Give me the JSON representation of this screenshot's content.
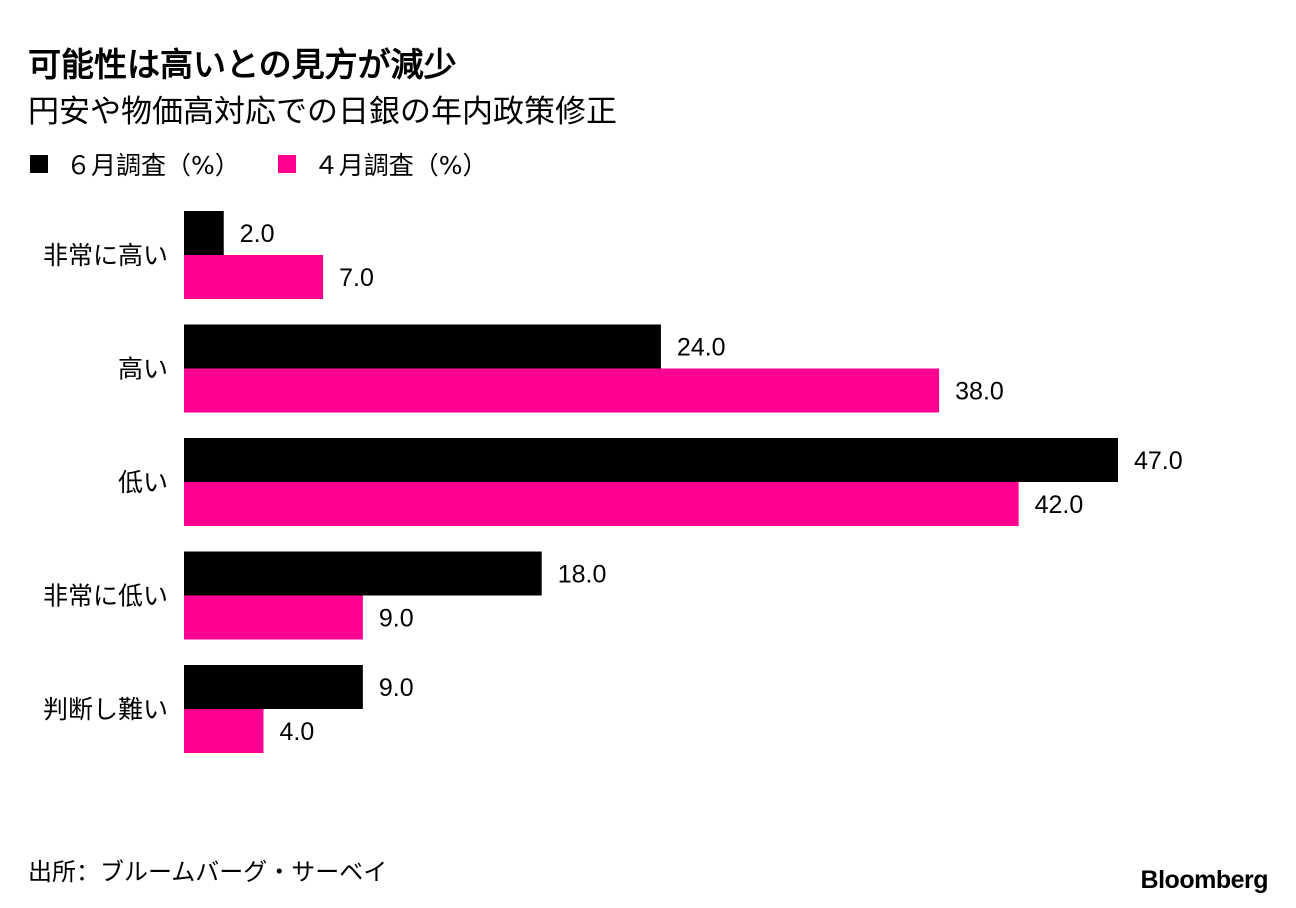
{
  "title": "可能性は高いとの見方が減少",
  "subtitle": "円安や物価高対応での日銀の年内政策修正",
  "source": "出所：ブルームバーグ・サーベイ",
  "logo": "Bloomberg",
  "colors": {
    "june": "#000000",
    "april": "#ff0090"
  },
  "chart_data": {
    "type": "bar",
    "orientation": "horizontal",
    "categories": [
      "非常に高い",
      "高い",
      "低い",
      "非常に低い",
      "判断し難い"
    ],
    "series": [
      {
        "name": "６月調査（%）",
        "values": [
          2.0,
          24.0,
          47.0,
          18.0,
          9.0
        ],
        "labels": [
          "2.0",
          "24.0",
          "47.0",
          "18.0",
          "9.0"
        ]
      },
      {
        "name": "４月調査（%）",
        "values": [
          7.0,
          38.0,
          42.0,
          9.0,
          4.0
        ],
        "labels": [
          "7.0",
          "38.0",
          "42.0",
          "9.0",
          "4.0"
        ]
      }
    ],
    "xlim": [
      0,
      47
    ],
    "grid": false,
    "legend": "top-left"
  }
}
